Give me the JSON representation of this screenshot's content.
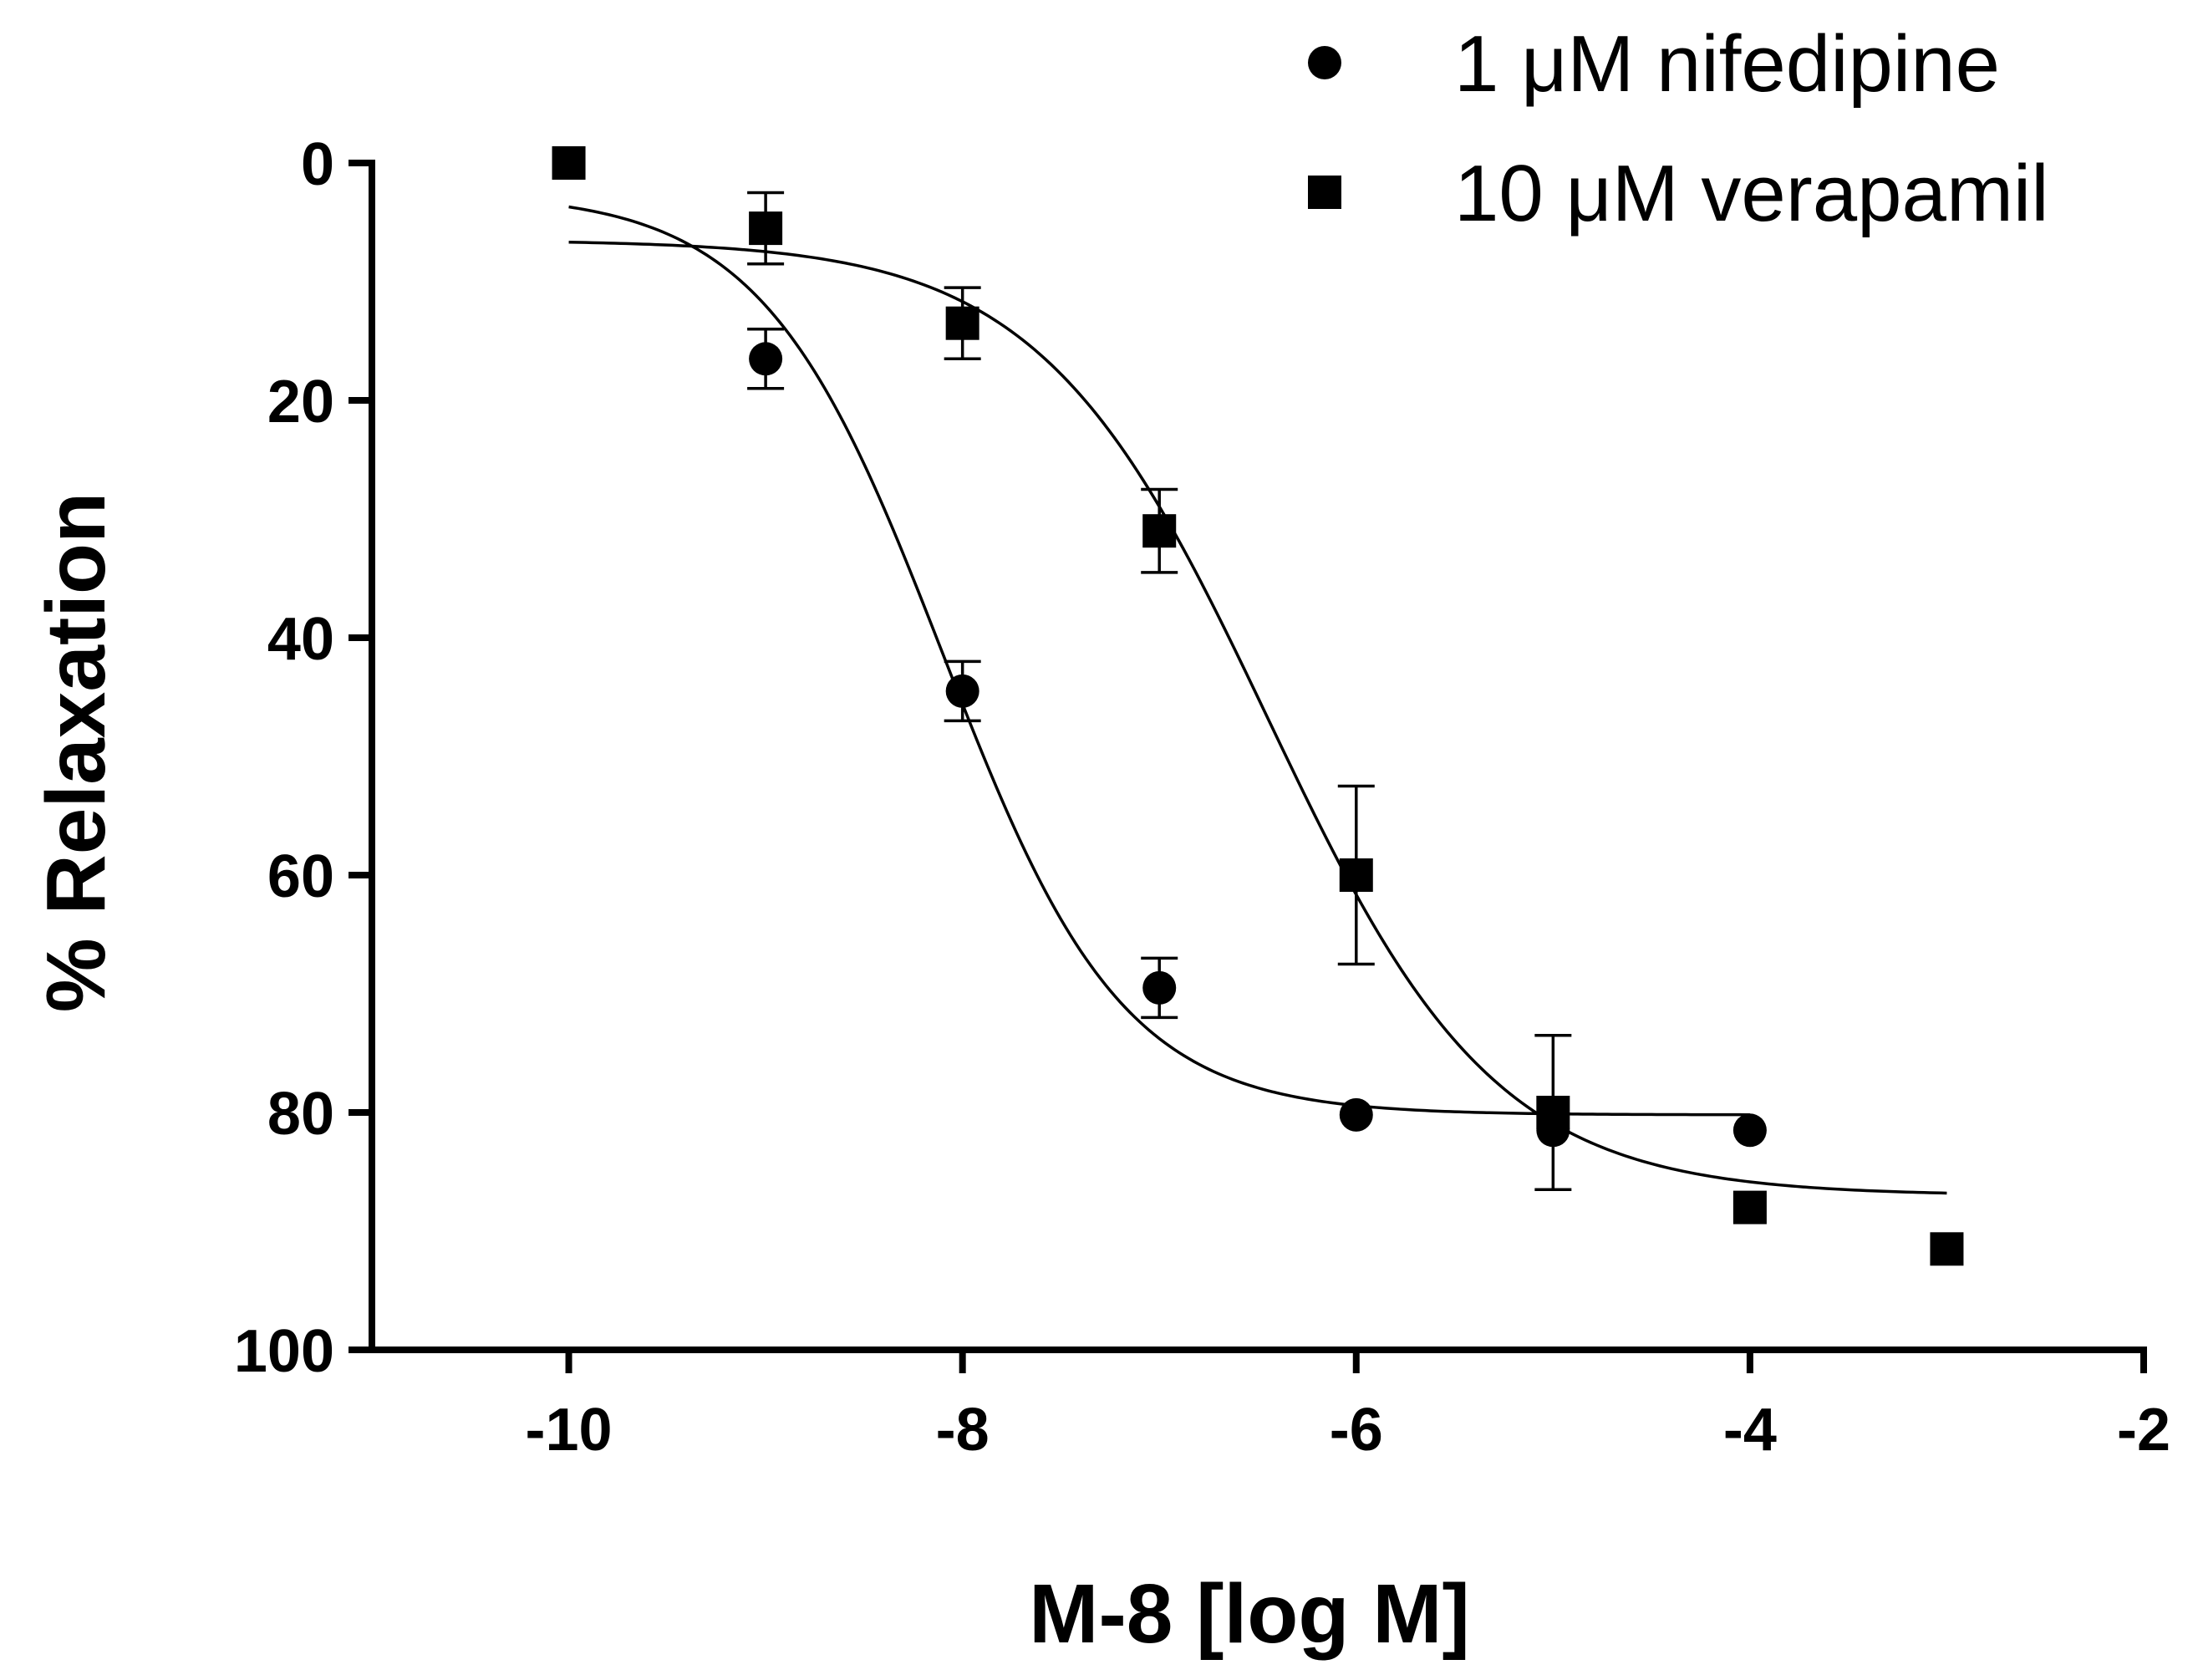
{
  "chart_data": {
    "type": "scatter",
    "title": "",
    "xlabel": "M-8 [log M]",
    "ylabel": "% Relaxation",
    "xlim": [
      -11,
      -2
    ],
    "ylim": [
      0,
      100
    ],
    "y_inverted": true,
    "xticks": [
      -10,
      -8,
      -6,
      -4,
      -2
    ],
    "yticks": [
      0,
      20,
      40,
      60,
      80,
      100
    ],
    "grid": false,
    "legend_position": "top-right",
    "series": [
      {
        "name": "1 μM nifedipine",
        "marker": "circle",
        "points": [
          {
            "x": -9,
            "y": 16.5,
            "err": 2.5
          },
          {
            "x": -8,
            "y": 44.5,
            "err": 2.5
          },
          {
            "x": -7,
            "y": 69.5,
            "err": 2.5
          },
          {
            "x": -6,
            "y": 80.2,
            "err": 0
          },
          {
            "x": -5,
            "y": 81.5,
            "err": 0
          },
          {
            "x": -4,
            "y": 81.5,
            "err": 0
          }
        ],
        "fit": {
          "model": "sigmoid",
          "top": 2.5,
          "bottom": 80.2,
          "logEC50": -8.1,
          "hill": 0.95,
          "x_range": [
            -10,
            -4
          ]
        }
      },
      {
        "name": "10 μM verapamil",
        "marker": "square",
        "points": [
          {
            "x": -10,
            "y": 0,
            "err": 0
          },
          {
            "x": -9,
            "y": 5.5,
            "err": 3
          },
          {
            "x": -8,
            "y": 13.5,
            "err": 3
          },
          {
            "x": -7,
            "y": 31,
            "err": 3.5
          },
          {
            "x": -6,
            "y": 60,
            "err": 7.5
          },
          {
            "x": -5,
            "y": 80,
            "err": 6.5
          },
          {
            "x": -4,
            "y": 88,
            "err": 0
          },
          {
            "x": -3,
            "y": 91.5,
            "err": 0
          }
        ],
        "fit": {
          "model": "sigmoid",
          "top": 6.5,
          "bottom": 87,
          "logEC50": -6.45,
          "hill": 0.75,
          "x_range": [
            -10,
            -3
          ]
        }
      }
    ]
  }
}
